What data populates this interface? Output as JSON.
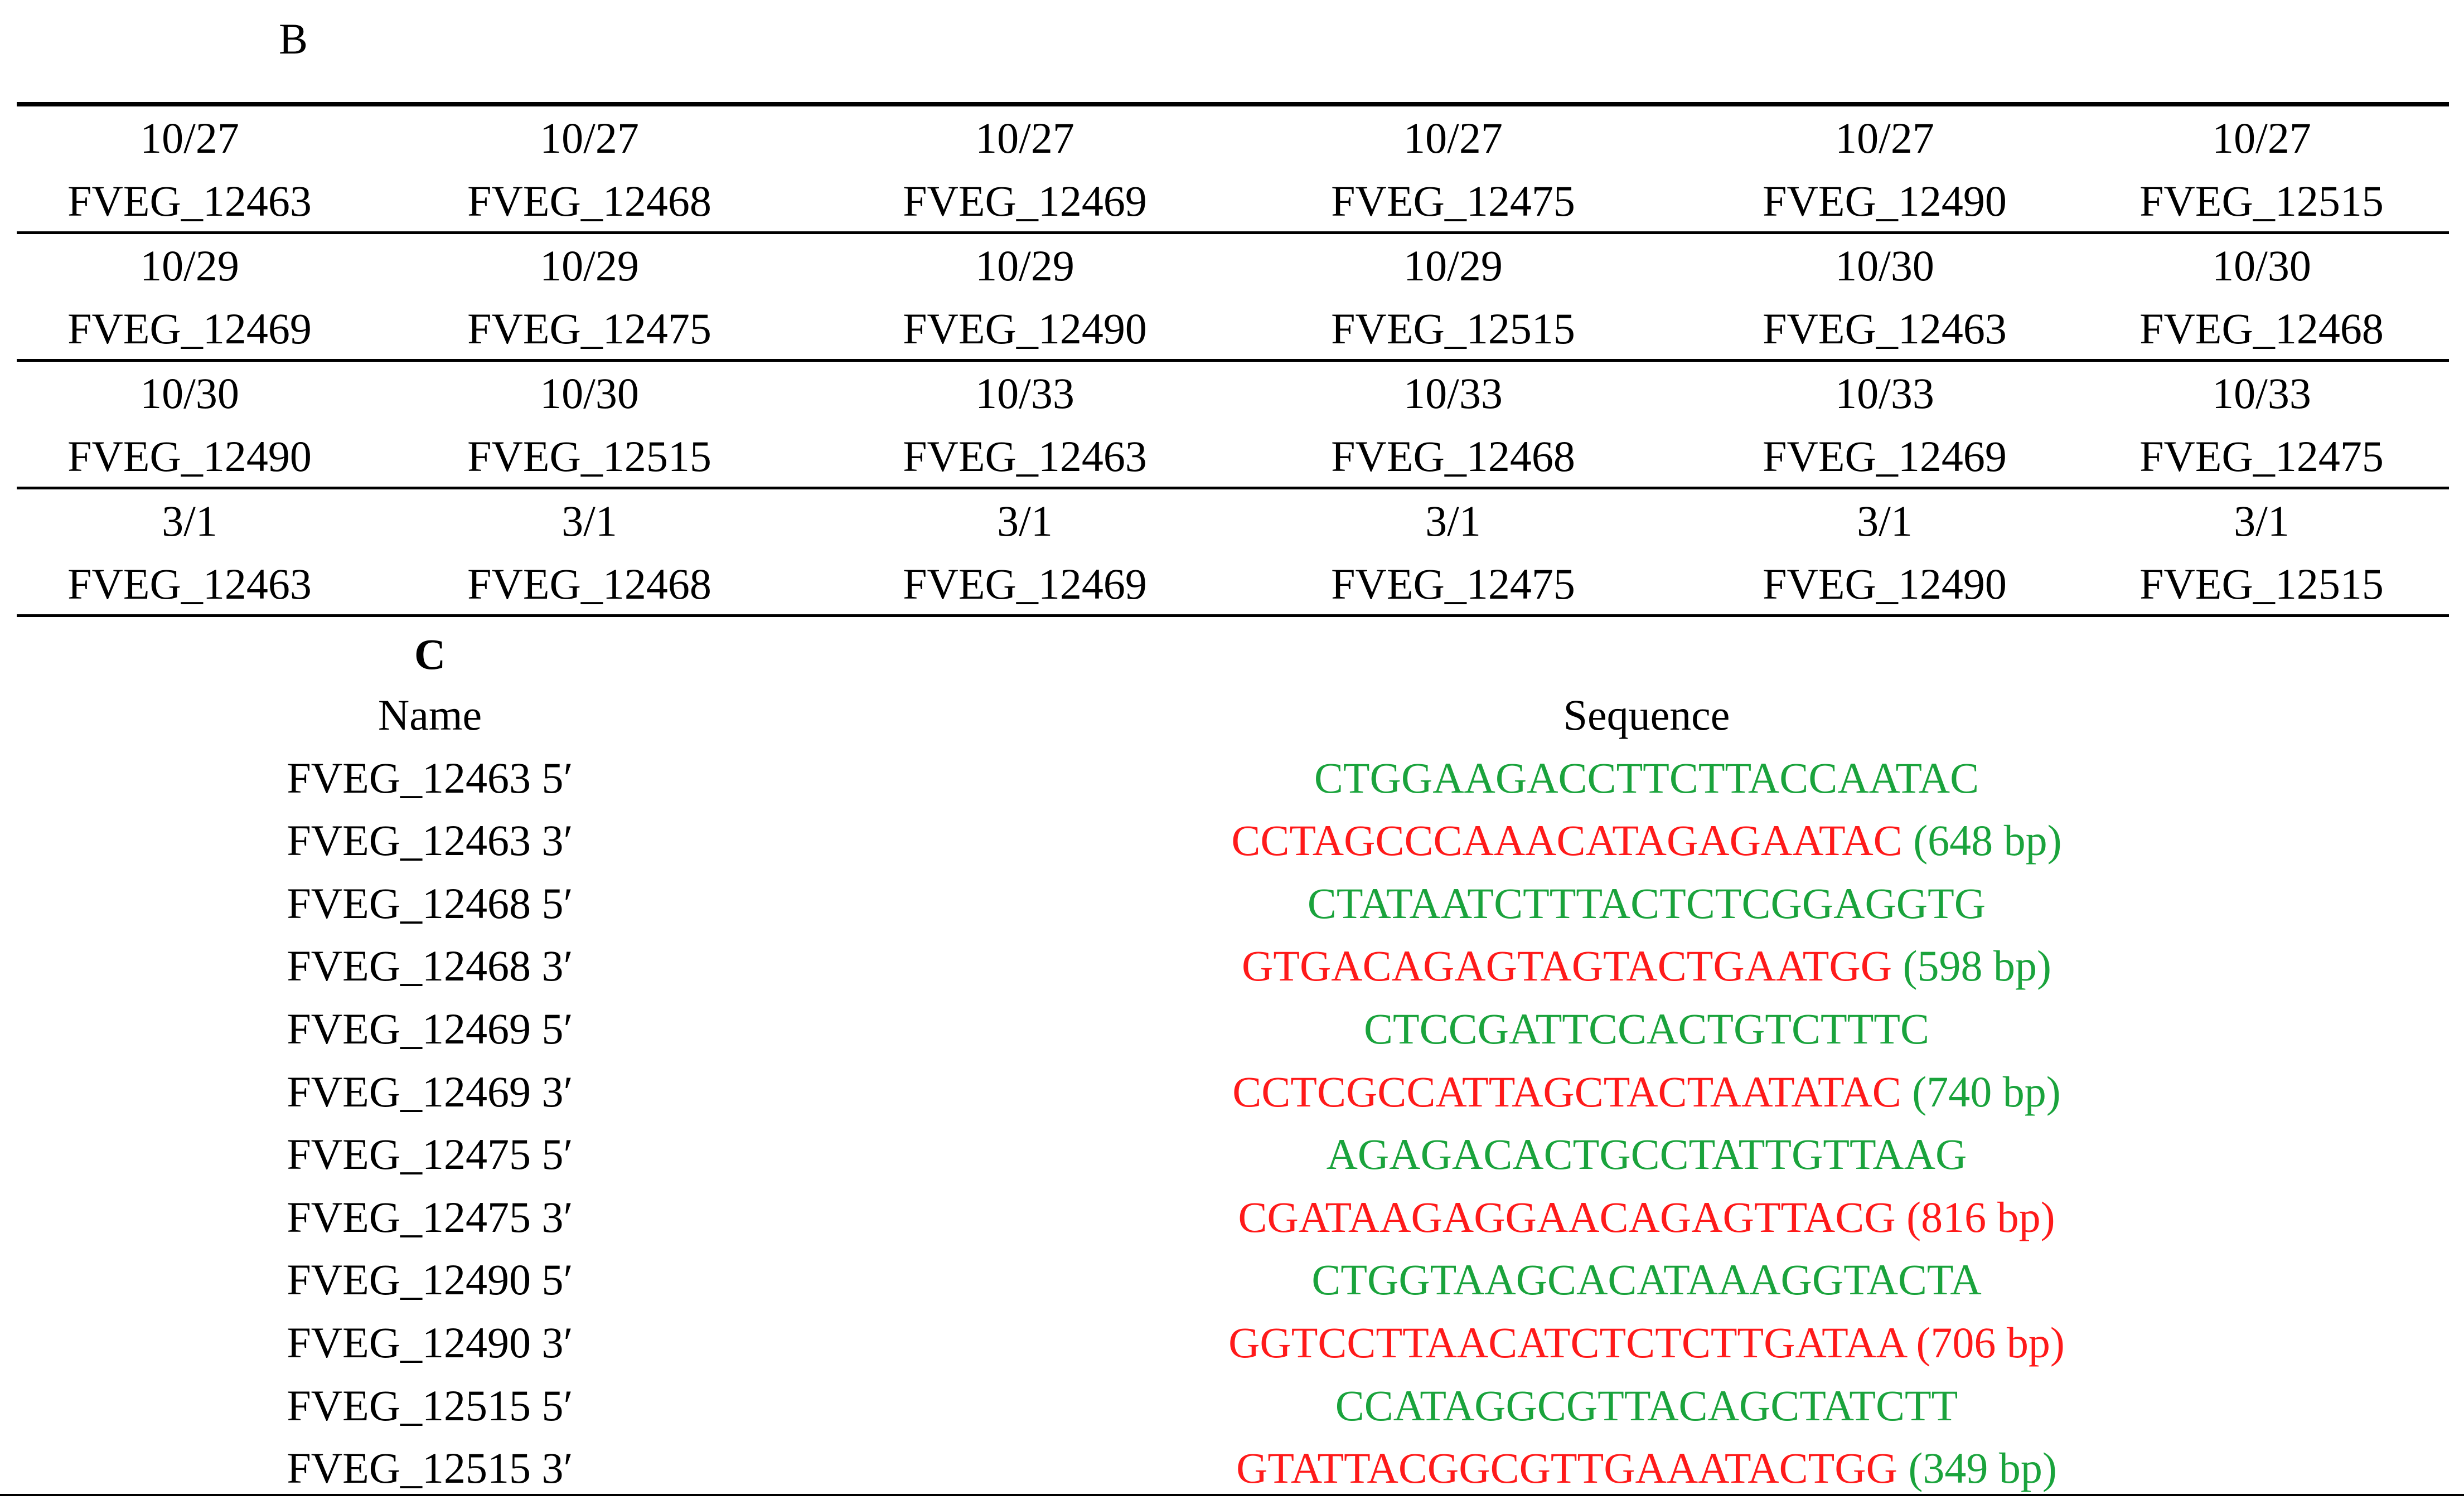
{
  "panel_b": {
    "label": "B",
    "rows": [
      [
        {
          "ratio": "10/27",
          "gene": "FVEG_12463"
        },
        {
          "ratio": "10/27",
          "gene": "FVEG_12468"
        },
        {
          "ratio": "10/27",
          "gene": "FVEG_12469"
        },
        {
          "ratio": "10/27",
          "gene": "FVEG_12475"
        },
        {
          "ratio": "10/27",
          "gene": "FVEG_12490"
        },
        {
          "ratio": "10/27",
          "gene": "FVEG_12515"
        }
      ],
      [
        {
          "ratio": "10/29",
          "gene": "FVEG_12469"
        },
        {
          "ratio": "10/29",
          "gene": "FVEG_12475"
        },
        {
          "ratio": "10/29",
          "gene": "FVEG_12490"
        },
        {
          "ratio": "10/29",
          "gene": "FVEG_12515"
        },
        {
          "ratio": "10/30",
          "gene": "FVEG_12463"
        },
        {
          "ratio": "10/30",
          "gene": "FVEG_12468"
        }
      ],
      [
        {
          "ratio": "10/30",
          "gene": "FVEG_12490"
        },
        {
          "ratio": "10/30",
          "gene": "FVEG_12515"
        },
        {
          "ratio": "10/33",
          "gene": "FVEG_12463"
        },
        {
          "ratio": "10/33",
          "gene": "FVEG_12468"
        },
        {
          "ratio": "10/33",
          "gene": "FVEG_12469"
        },
        {
          "ratio": "10/33",
          "gene": "FVEG_12475"
        }
      ],
      [
        {
          "ratio": "3/1",
          "gene": "FVEG_12463"
        },
        {
          "ratio": "3/1",
          "gene": "FVEG_12468"
        },
        {
          "ratio": "3/1",
          "gene": "FVEG_12469"
        },
        {
          "ratio": "3/1",
          "gene": "FVEG_12475"
        },
        {
          "ratio": "3/1",
          "gene": "FVEG_12490"
        },
        {
          "ratio": "3/1",
          "gene": "FVEG_12515"
        }
      ]
    ]
  },
  "panel_c": {
    "label": "C",
    "headers": {
      "name": "Name",
      "sequence": "Sequence"
    },
    "colors": {
      "forward": "#1aa33c",
      "reverse": "#ff1a1a"
    },
    "rows": [
      {
        "name": "FVEG_12463 5′",
        "sequence": "CTGGAAGACCTTCTTACCAATAC",
        "seq_color": "forward",
        "size": "",
        "size_color": "forward"
      },
      {
        "name": "FVEG_12463 3′",
        "sequence": "CCTAGCCCAAACATAGAGAATAC",
        "seq_color": "reverse",
        "size": "(648 bp)",
        "size_color": "forward"
      },
      {
        "name": "FVEG_12468 5′",
        "sequence": "CTATAATCTTTACTCTCGGAGGTG",
        "seq_color": "forward",
        "size": "",
        "size_color": "forward"
      },
      {
        "name": "FVEG_12468 3′",
        "sequence": "GTGACAGAGTAGTACTGAATGG",
        "seq_color": "reverse",
        "size": "(598 bp)",
        "size_color": "forward"
      },
      {
        "name": "FVEG_12469 5′",
        "sequence": "CTCCGATTCCACTGTCTTTC",
        "seq_color": "forward",
        "size": "",
        "size_color": "forward"
      },
      {
        "name": "FVEG_12469 3′",
        "sequence": "CCTCGCCATTAGCTACTAATATAC",
        "seq_color": "reverse",
        "size": "(740 bp)",
        "size_color": "forward"
      },
      {
        "name": "FVEG_12475 5′",
        "sequence": "AGAGACACTGCCTATTGTTAAG",
        "seq_color": "forward",
        "size": "",
        "size_color": "forward"
      },
      {
        "name": "FVEG_12475 3′",
        "sequence": "CGATAAGAGGAACAGAGTTACG",
        "seq_color": "reverse",
        "size": "(816 bp)",
        "size_color": "reverse"
      },
      {
        "name": "FVEG_12490 5′",
        "sequence": "CTGGTAAGCACATAAAGGTACTA",
        "seq_color": "forward",
        "size": "",
        "size_color": "forward"
      },
      {
        "name": "FVEG_12490 3′",
        "sequence": "GGTCCTTAACATCTCTCTTGATAA",
        "seq_color": "reverse",
        "size": "(706 bp)",
        "size_color": "reverse"
      },
      {
        "name": "FVEG_12515 5′",
        "sequence": "CCATAGGCGTTACAGCTATCTT",
        "seq_color": "forward",
        "size": "",
        "size_color": "forward"
      },
      {
        "name": "FVEG_12515 3′",
        "sequence": "GTATTACGGCGTTGAAATACTGG",
        "seq_color": "reverse",
        "size": "(349 bp)",
        "size_color": "forward"
      }
    ]
  }
}
